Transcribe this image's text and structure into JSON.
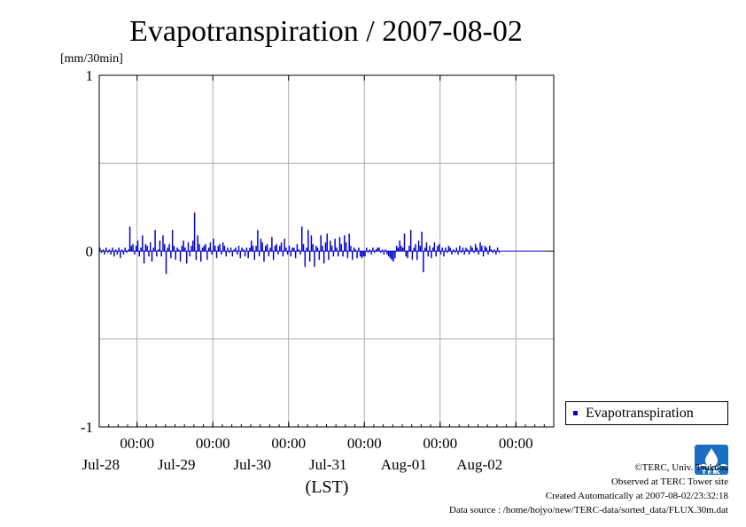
{
  "title": "Evapotranspiration / 2007-08-02",
  "credits": {
    "copyright": "©TERC, Univ. Tsukuba",
    "observed": "Observed at TERC Tower site",
    "created": "Created Automatically at 2007-08-02/23:32:18",
    "source": "Data source : /home/hojyo/new/TERC-data/sorted_data/FLUX.30m.dat"
  },
  "legend": {
    "label": "Evapotranspiration"
  },
  "colors": {
    "series": "#0000cc",
    "grid": "#aaaaaa"
  },
  "chart_data": {
    "type": "bar",
    "title": "Evapotranspiration / 2007-08-02",
    "ylabel": "[mm/30min]",
    "xlabel": "(LST)",
    "ylim": [
      -1,
      1
    ],
    "yticks": [
      {
        "value": 1,
        "label": "1"
      },
      {
        "value": 0,
        "label": "0"
      },
      {
        "value": -1,
        "label": "-1"
      }
    ],
    "xlim_days": [
      -0.5,
      5.5
    ],
    "xticks": [
      {
        "day": 0,
        "time": "00:00",
        "date": "Jul-28"
      },
      {
        "day": 1,
        "time": "00:00",
        "date": "Jul-29"
      },
      {
        "day": 2,
        "time": "00:00",
        "date": "Jul-30"
      },
      {
        "day": 3,
        "time": "00:00",
        "date": "Jul-31"
      },
      {
        "day": 4,
        "time": "00:00",
        "date": "Aug-01"
      },
      {
        "day": 5,
        "time": "00:00",
        "date": "Aug-02"
      }
    ],
    "grid": true,
    "legend_position": "lower-right, outside plot",
    "series": [
      {
        "name": "Evapotranspiration",
        "interval_hours": 0.5,
        "start": "Jul-27 12:00",
        "values": [
          0.02,
          -0.01,
          0.01,
          -0.02,
          0.02,
          -0.01,
          0.01,
          -0.02,
          0.02,
          -0.03,
          0.01,
          -0.02,
          0.02,
          -0.04,
          0.01,
          -0.02,
          0.02,
          -0.01,
          0.01,
          0.14,
          0.03,
          0.04,
          -0.02,
          0.03,
          0.06,
          -0.03,
          0.02,
          0.09,
          -0.07,
          0.04,
          0.03,
          -0.03,
          0.05,
          -0.06,
          0.02,
          0.12,
          -0.03,
          0.01,
          0.06,
          -0.03,
          0.09,
          0.04,
          -0.13,
          0.02,
          0.04,
          -0.04,
          0.12,
          0.03,
          -0.05,
          0.02,
          0.01,
          -0.06,
          0.03,
          0.06,
          0.02,
          -0.07,
          0.05,
          -0.03,
          0.03,
          0.06,
          0.22,
          -0.05,
          0.09,
          0.04,
          -0.06,
          0.02,
          0.03,
          0.04,
          -0.05,
          0.02,
          0.05,
          -0.02,
          0.07,
          0.03,
          -0.04,
          0.03,
          0.04,
          -0.02,
          0.05,
          0.03,
          -0.03,
          0.02,
          -0.01,
          0.02,
          -0.03,
          0.01,
          0.02,
          -0.02,
          0.03,
          -0.04,
          0.02,
          0.01,
          -0.03,
          0.02,
          -0.04,
          0.02,
          0.06,
          0.03,
          -0.05,
          0.03,
          0.12,
          -0.03,
          0.07,
          0.05,
          -0.06,
          0.03,
          0.04,
          -0.03,
          0.02,
          0.08,
          -0.05,
          0.03,
          0.04,
          -0.02,
          0.03,
          0.05,
          -0.03,
          0.07,
          0.02,
          -0.02,
          0.03,
          -0.03,
          0.02,
          0.02,
          -0.04,
          0.04,
          0.01,
          -0.02,
          0.14,
          0.04,
          -0.09,
          0.02,
          0.12,
          -0.06,
          0.09,
          0.04,
          -0.09,
          0.03,
          0.02,
          -0.05,
          0.09,
          0.03,
          -0.07,
          0.05,
          0.1,
          -0.05,
          0.06,
          0.03,
          -0.03,
          0.07,
          0.02,
          -0.03,
          0.08,
          0.04,
          -0.03,
          0.09,
          0.05,
          -0.04,
          0.1,
          0.03,
          -0.05,
          0.02,
          0.01,
          -0.04,
          0.02,
          -0.03,
          -0.04,
          -0.03,
          -0.03,
          0.02,
          -0.01,
          0.01,
          -0.02,
          0.02,
          -0.01,
          0.01,
          0.02,
          0.02,
          -0.01,
          0.01,
          -0.02,
          0.01,
          -0.02,
          -0.03,
          -0.04,
          -0.05,
          -0.06,
          -0.04,
          0.03,
          0.02,
          0.06,
          0.03,
          0.02,
          0.1,
          -0.03,
          -0.04,
          0.03,
          0.12,
          -0.05,
          0.02,
          0.04,
          -0.05,
          0.06,
          0.03,
          0.11,
          -0.12,
          0.02,
          0.05,
          -0.03,
          0.03,
          -0.04,
          0.02,
          0.05,
          -0.03,
          0.03,
          0.04,
          -0.02,
          0.02,
          -0.03,
          0.02,
          -0.01,
          0.03,
          0.02,
          -0.02,
          0.01,
          -0.01,
          0.02,
          -0.02,
          0.03,
          -0.01,
          0.02,
          -0.02,
          0.02,
          0.01,
          -0.02,
          0.03,
          0.02,
          -0.01,
          0.04,
          0.02,
          -0.02,
          0.05,
          0.03,
          -0.03,
          0.03,
          0.02,
          -0.02,
          0.03,
          0.01,
          -0.01,
          0.01,
          -0.02,
          0.02,
          -0.01
        ]
      }
    ]
  }
}
